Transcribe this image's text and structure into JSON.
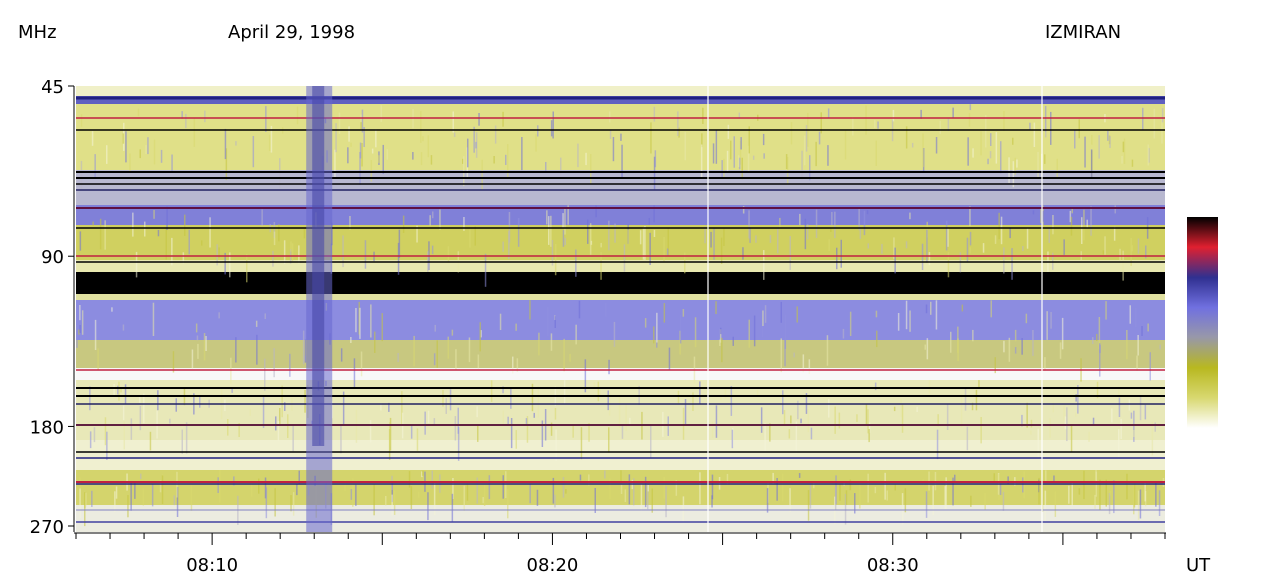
{
  "chart_data": {
    "type": "heatmap",
    "title": "April 29, 1998",
    "source": "IZMIRAN",
    "ylabel": "MHz",
    "xlabel": "UT",
    "y_scale": "log",
    "y_ticks": [
      45,
      90,
      180,
      270
    ],
    "y_range": [
      45,
      270
    ],
    "x_ticks": [
      "08:10",
      "08:20",
      "08:30"
    ],
    "x_range_minutes_ut": [
      "08:06",
      "08:38"
    ],
    "burst": {
      "time": "08:13",
      "description": "broadband vertical burst"
    },
    "colorbar": [
      "#ffffff",
      "#d8d870",
      "#b8b820",
      "#9898a8",
      "#7070e0",
      "#303090",
      "#e02030",
      "#000000"
    ]
  }
}
